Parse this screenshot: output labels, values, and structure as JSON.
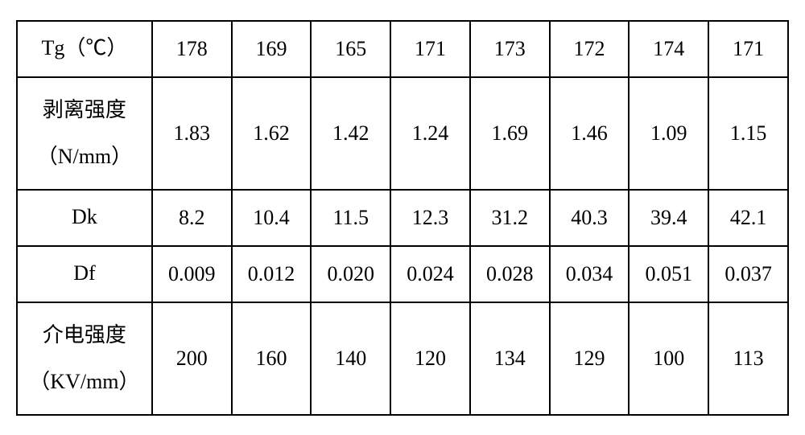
{
  "table": {
    "rows": [
      {
        "label": "Tg（℃）",
        "values": [
          "178",
          "169",
          "165",
          "171",
          "173",
          "172",
          "174",
          "171"
        ],
        "tall": false,
        "multiline": false
      },
      {
        "label": "剥离强度\n（N/mm）",
        "values": [
          "1.83",
          "1.62",
          "1.42",
          "1.24",
          "1.69",
          "1.46",
          "1.09",
          "1.15"
        ],
        "tall": true,
        "multiline": true
      },
      {
        "label": "Dk",
        "values": [
          "8.2",
          "10.4",
          "11.5",
          "12.3",
          "31.2",
          "40.3",
          "39.4",
          "42.1"
        ],
        "tall": false,
        "multiline": false
      },
      {
        "label": "Df",
        "values": [
          "0.009",
          "0.012",
          "0.020",
          "0.024",
          "0.028",
          "0.034",
          "0.051",
          "0.037"
        ],
        "tall": false,
        "multiline": false
      },
      {
        "label": "介电强度\n（KV/mm）",
        "values": [
          "200",
          "160",
          "140",
          "120",
          "134",
          "129",
          "100",
          "113"
        ],
        "tall": true,
        "multiline": true
      }
    ]
  },
  "style": {
    "border_color": "#000000",
    "border_width": 2,
    "font_size": 26,
    "text_color": "#000000",
    "background_color": "#ffffff",
    "header_col_width": 168,
    "data_col_width": 99,
    "row_height_short": 70,
    "row_height_tall": 140
  }
}
